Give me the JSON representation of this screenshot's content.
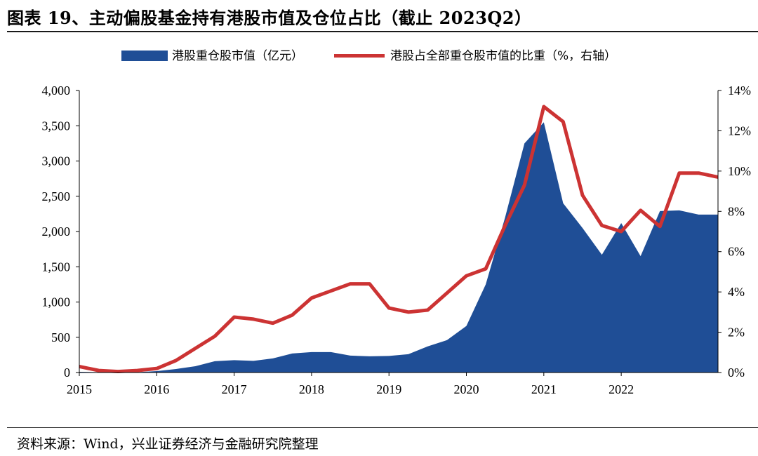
{
  "title": "图表 19、主动偏股基金持有港股市值及仓位占比（截止 2023Q2）",
  "source": "资料来源：Wind，兴业证券经济与金融研究院整理",
  "colors": {
    "area": "#1f4e96",
    "line": "#cc3333"
  },
  "chart_data": {
    "type": "area",
    "legend": [
      {
        "label": "港股重仓股市值（亿元）",
        "kind": "area"
      },
      {
        "label": "港股占全部重仓股市值的比重（%，右轴）",
        "kind": "line"
      }
    ],
    "x": [
      "2015Q1",
      "2015Q2",
      "2015Q3",
      "2015Q4",
      "2016Q1",
      "2016Q2",
      "2016Q3",
      "2016Q4",
      "2017Q1",
      "2017Q2",
      "2017Q3",
      "2017Q4",
      "2018Q1",
      "2018Q2",
      "2018Q3",
      "2018Q4",
      "2019Q1",
      "2019Q2",
      "2019Q3",
      "2019Q4",
      "2020Q1",
      "2020Q2",
      "2020Q3",
      "2020Q4",
      "2021Q1",
      "2021Q2",
      "2021Q3",
      "2021Q4",
      "2022Q1",
      "2022Q2",
      "2022Q3",
      "2022Q4",
      "2023Q1",
      "2023Q2"
    ],
    "xlabels": [
      "2015",
      "2016",
      "2017",
      "2018",
      "2019",
      "2020",
      "2021",
      "2022"
    ],
    "series": [
      {
        "name": "港股重仓股市值（亿元）",
        "axis": "left",
        "values": [
          10,
          5,
          3,
          5,
          20,
          50,
          90,
          160,
          175,
          165,
          200,
          270,
          290,
          290,
          240,
          230,
          235,
          260,
          370,
          460,
          660,
          1250,
          2200,
          3250,
          3550,
          2400,
          2050,
          1670,
          2120,
          1650,
          2290,
          2300,
          2240,
          2240
        ]
      },
      {
        "name": "港股占全部重仓股市值的比重（%，右轴）",
        "axis": "right",
        "values": [
          0.3,
          0.1,
          0.05,
          0.1,
          0.2,
          0.6,
          1.2,
          1.8,
          2.75,
          2.65,
          2.45,
          2.85,
          3.7,
          4.05,
          4.4,
          4.4,
          3.2,
          3.0,
          3.1,
          3.95,
          4.8,
          5.15,
          7.3,
          9.3,
          13.2,
          12.45,
          8.8,
          7.3,
          7.0,
          8.05,
          7.25,
          9.9,
          9.9,
          9.7
        ]
      }
    ],
    "yleft": {
      "ylim": [
        0,
        4000
      ],
      "ticks": [
        "0",
        "500",
        "1,000",
        "1,500",
        "2,000",
        "2,500",
        "3,000",
        "3,500",
        "4,000"
      ]
    },
    "yright": {
      "ylim": [
        0,
        14
      ],
      "ticks": [
        "0%",
        "2%",
        "4%",
        "6%",
        "8%",
        "10%",
        "12%",
        "14%"
      ]
    }
  }
}
